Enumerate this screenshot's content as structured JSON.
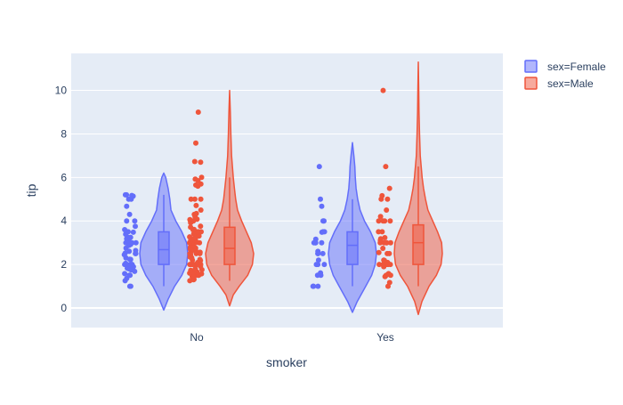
{
  "chart_data": {
    "type": "violin",
    "title": "",
    "xlabel": "smoker",
    "ylabel": "tip",
    "categories": [
      "No",
      "Yes"
    ],
    "ylim": [
      -0.9,
      11.7
    ],
    "yticks": [
      0,
      2,
      4,
      6,
      8,
      10
    ],
    "grid": true,
    "legend_position": "top-right",
    "series": [
      {
        "name": "sex=Female",
        "color": "#636efa",
        "groups": [
          {
            "category": "No",
            "box": {
              "q1": 2.0,
              "median": 2.68,
              "q3": 3.5,
              "whisker_low": 1.0,
              "whisker_high": 5.2
            },
            "density": [
              [
                -0.1,
                0.0
              ],
              [
                0.4,
                0.18
              ],
              [
                1.0,
                0.45
              ],
              [
                1.5,
                0.75
              ],
              [
                2.0,
                0.95
              ],
              [
                2.5,
                1.0
              ],
              [
                3.0,
                0.95
              ],
              [
                3.5,
                0.75
              ],
              [
                4.0,
                0.5
              ],
              [
                4.5,
                0.3
              ],
              [
                5.0,
                0.25
              ],
              [
                5.5,
                0.18
              ],
              [
                6.0,
                0.08
              ],
              [
                6.2,
                0.0
              ]
            ],
            "points": [
              1.0,
              1.0,
              1.25,
              1.36,
              1.5,
              1.5,
              1.58,
              1.68,
              1.75,
              1.8,
              1.83,
              1.9,
              2.0,
              2.0,
              2.0,
              2.0,
              2.0,
              2.05,
              2.23,
              2.24,
              2.3,
              2.45,
              2.5,
              2.5,
              2.52,
              2.6,
              2.64,
              2.75,
              2.88,
              2.92,
              3.0,
              3.0,
              3.0,
              3.0,
              3.07,
              3.18,
              3.25,
              3.25,
              3.39,
              3.48,
              3.5,
              3.5,
              3.6,
              3.75,
              4.0,
              4.0,
              4.3,
              4.67,
              5.0,
              5.0,
              5.14,
              5.17,
              5.2,
              5.2
            ]
          },
          {
            "category": "Yes",
            "box": {
              "q1": 2.0,
              "median": 2.88,
              "q3": 3.5,
              "whisker_low": 1.0,
              "whisker_high": 5.0
            },
            "density": [
              [
                -0.2,
                0.0
              ],
              [
                0.3,
                0.2
              ],
              [
                1.0,
                0.55
              ],
              [
                1.5,
                0.8
              ],
              [
                2.0,
                0.95
              ],
              [
                2.5,
                1.0
              ],
              [
                3.0,
                0.95
              ],
              [
                3.5,
                0.75
              ],
              [
                4.0,
                0.5
              ],
              [
                4.5,
                0.32
              ],
              [
                5.0,
                0.22
              ],
              [
                5.5,
                0.15
              ],
              [
                6.0,
                0.12
              ],
              [
                6.5,
                0.1
              ],
              [
                7.0,
                0.06
              ],
              [
                7.6,
                0.0
              ]
            ],
            "points": [
              1.0,
              1.0,
              1.0,
              1.5,
              1.5,
              1.61,
              2.0,
              2.0,
              2.0,
              2.2,
              2.5,
              2.5,
              2.5,
              2.6,
              3.0,
              3.0,
              3.0,
              3.0,
              3.16,
              3.48,
              3.5,
              3.5,
              4.0,
              4.0,
              4.67,
              5.0,
              6.5
            ]
          }
        ]
      },
      {
        "name": "sex=Male",
        "color": "#ef553b",
        "groups": [
          {
            "category": "No",
            "box": {
              "q1": 2.0,
              "median": 2.74,
              "q3": 3.71,
              "whisker_low": 1.25,
              "whisker_high": 6.0
            },
            "density": [
              [
                0.1,
                0.0
              ],
              [
                0.6,
                0.15
              ],
              [
                1.0,
                0.4
              ],
              [
                1.5,
                0.75
              ],
              [
                2.0,
                0.95
              ],
              [
                2.5,
                1.0
              ],
              [
                3.0,
                0.9
              ],
              [
                3.5,
                0.7
              ],
              [
                4.0,
                0.5
              ],
              [
                4.5,
                0.33
              ],
              [
                5.0,
                0.25
              ],
              [
                5.5,
                0.2
              ],
              [
                6.0,
                0.15
              ],
              [
                7.0,
                0.08
              ],
              [
                8.0,
                0.05
              ],
              [
                9.0,
                0.03
              ],
              [
                10.0,
                0.0
              ]
            ],
            "points": [
              1.25,
              1.3,
              1.32,
              1.44,
              1.47,
              1.5,
              1.5,
              1.5,
              1.57,
              1.6,
              1.64,
              1.66,
              1.71,
              1.73,
              1.76,
              1.8,
              1.92,
              2.0,
              2.0,
              2.0,
              2.0,
              2.0,
              2.0,
              2.0,
              2.01,
              2.02,
              2.03,
              2.09,
              2.18,
              2.2,
              2.23,
              2.31,
              2.34,
              2.45,
              2.5,
              2.5,
              2.5,
              2.56,
              2.6,
              2.64,
              2.71,
              2.72,
              2.75,
              2.8,
              2.83,
              2.9,
              3.0,
              3.0,
              3.0,
              3.0,
              3.0,
              3.02,
              3.08,
              3.12,
              3.15,
              3.21,
              3.23,
              3.27,
              3.31,
              3.35,
              3.4,
              3.41,
              3.5,
              3.5,
              3.5,
              3.6,
              3.61,
              3.71,
              3.76,
              3.92,
              4.0,
              4.0,
              4.0,
              4.06,
              4.08,
              4.19,
              4.3,
              4.34,
              4.5,
              4.71,
              5.0,
              5.0,
              5.0,
              5.6,
              5.65,
              5.7,
              5.85,
              5.92,
              6.0,
              6.7,
              6.73,
              7.58,
              9.0
            ]
          },
          {
            "category": "Yes",
            "box": {
              "q1": 2.0,
              "median": 3.0,
              "q3": 3.82,
              "whisker_low": 1.0,
              "whisker_high": 6.5
            },
            "density": [
              [
                -0.3,
                0.0
              ],
              [
                0.3,
                0.15
              ],
              [
                1.0,
                0.45
              ],
              [
                1.5,
                0.75
              ],
              [
                2.0,
                0.95
              ],
              [
                2.5,
                1.0
              ],
              [
                3.0,
                0.97
              ],
              [
                3.5,
                0.8
              ],
              [
                4.0,
                0.6
              ],
              [
                4.5,
                0.4
              ],
              [
                5.0,
                0.3
              ],
              [
                5.5,
                0.22
              ],
              [
                6.0,
                0.16
              ],
              [
                7.0,
                0.08
              ],
              [
                8.0,
                0.05
              ],
              [
                9.0,
                0.03
              ],
              [
                10.0,
                0.02
              ],
              [
                11.3,
                0.0
              ]
            ],
            "points": [
              1.0,
              1.17,
              1.44,
              1.5,
              1.5,
              1.58,
              1.9,
              2.0,
              2.0,
              2.0,
              2.0,
              2.0,
              2.09,
              2.0,
              2.18,
              2.2,
              2.5,
              2.5,
              2.55,
              2.74,
              3.0,
              3.0,
              3.0,
              3.0,
              3.0,
              3.11,
              3.18,
              3.23,
              3.5,
              3.5,
              4.0,
              4.0,
              4.0,
              4.0,
              4.2,
              4.5,
              5.0,
              5.0,
              5.16,
              5.5,
              6.5,
              10.0
            ]
          }
        ]
      }
    ]
  }
}
